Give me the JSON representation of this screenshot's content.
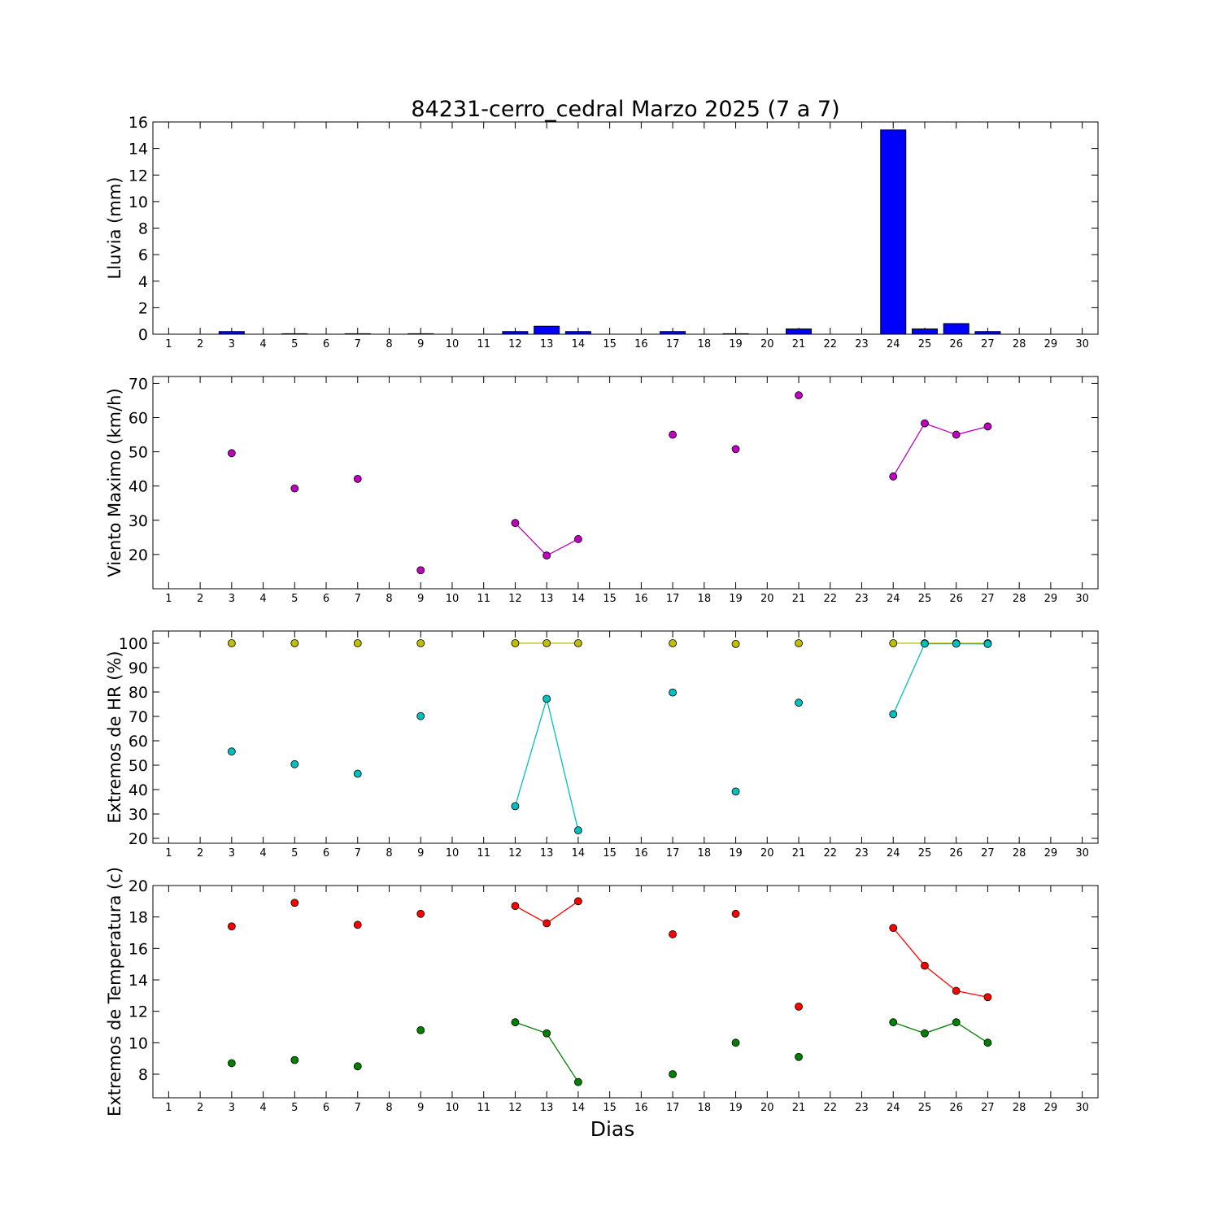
{
  "chart_data": [
    {
      "type": "bar",
      "title": "84231-cerro_cedral Marzo 2025  (7 a 7)",
      "xlabel": "",
      "ylabel": "Lluvia (mm)",
      "categories": [
        1,
        2,
        3,
        4,
        5,
        6,
        7,
        8,
        9,
        10,
        11,
        12,
        13,
        14,
        15,
        16,
        17,
        18,
        19,
        20,
        21,
        22,
        23,
        24,
        25,
        26,
        27,
        28,
        29,
        30
      ],
      "values": [
        null,
        null,
        0.2,
        null,
        0.0,
        null,
        0.0,
        null,
        0.0,
        null,
        null,
        0.2,
        0.6,
        0.2,
        null,
        null,
        0.2,
        null,
        0.0,
        null,
        0.4,
        null,
        null,
        15.4,
        0.4,
        0.8,
        0.2,
        null,
        null,
        null
      ],
      "ylim": [
        0,
        16
      ],
      "yticks": [
        0,
        2,
        4,
        6,
        8,
        10,
        12,
        14,
        16
      ],
      "color": "#0000ff"
    },
    {
      "type": "line",
      "title": "",
      "xlabel": "",
      "ylabel": "Viento Maximo (km/h)",
      "categories": [
        1,
        2,
        3,
        4,
        5,
        6,
        7,
        8,
        9,
        10,
        11,
        12,
        13,
        14,
        15,
        16,
        17,
        18,
        19,
        20,
        21,
        22,
        23,
        24,
        25,
        26,
        27,
        28,
        29,
        30
      ],
      "ylim": [
        10,
        72
      ],
      "yticks": [
        20,
        30,
        40,
        50,
        60,
        70
      ],
      "series": [
        {
          "color": "#bf00bf",
          "values": [
            null,
            null,
            49.6,
            null,
            39.3,
            null,
            42.1,
            null,
            15.4,
            null,
            null,
            29.2,
            19.7,
            24.5,
            null,
            null,
            55.0,
            null,
            50.8,
            null,
            66.5,
            null,
            null,
            42.8,
            58.3,
            55.0,
            57.4,
            null,
            null,
            null
          ]
        }
      ]
    },
    {
      "type": "line",
      "title": "",
      "xlabel": "",
      "ylabel": "Extremos de HR (%)",
      "categories": [
        1,
        2,
        3,
        4,
        5,
        6,
        7,
        8,
        9,
        10,
        11,
        12,
        13,
        14,
        15,
        16,
        17,
        18,
        19,
        20,
        21,
        22,
        23,
        24,
        25,
        26,
        27,
        28,
        29,
        30
      ],
      "ylim": [
        18,
        105
      ],
      "yticks": [
        20,
        30,
        40,
        50,
        60,
        70,
        80,
        90,
        100
      ],
      "series": [
        {
          "color": "#bfbf00",
          "values": [
            null,
            null,
            100,
            null,
            100,
            null,
            100,
            null,
            100,
            null,
            null,
            100,
            100,
            100,
            null,
            null,
            100,
            null,
            99.7,
            null,
            100,
            null,
            null,
            100,
            100,
            100,
            100,
            null,
            null,
            null
          ]
        },
        {
          "color": "#00bfbf",
          "values": [
            null,
            null,
            55.6,
            null,
            50.4,
            null,
            46.5,
            null,
            70.1,
            null,
            null,
            33.2,
            77.2,
            23.3,
            null,
            null,
            79.8,
            null,
            39.2,
            null,
            75.6,
            null,
            null,
            70.9,
            99.8,
            99.8,
            99.7,
            null,
            null,
            null
          ]
        }
      ]
    },
    {
      "type": "line",
      "title": "",
      "xlabel": "Dias",
      "ylabel": "Extremos de Temperatura (c)",
      "categories": [
        1,
        2,
        3,
        4,
        5,
        6,
        7,
        8,
        9,
        10,
        11,
        12,
        13,
        14,
        15,
        16,
        17,
        18,
        19,
        20,
        21,
        22,
        23,
        24,
        25,
        26,
        27,
        28,
        29,
        30
      ],
      "ylim": [
        6.5,
        20
      ],
      "yticks": [
        8,
        10,
        12,
        14,
        16,
        18,
        20
      ],
      "series": [
        {
          "color": "#ff0000",
          "values": [
            null,
            null,
            17.4,
            null,
            18.9,
            null,
            17.5,
            null,
            18.2,
            null,
            null,
            18.7,
            17.6,
            19.0,
            null,
            null,
            16.9,
            null,
            18.2,
            null,
            12.3,
            null,
            null,
            17.3,
            14.9,
            13.3,
            12.9,
            null,
            null,
            null
          ]
        },
        {
          "color": "#008000",
          "values": [
            null,
            null,
            8.7,
            null,
            8.9,
            null,
            8.5,
            null,
            10.8,
            null,
            null,
            11.3,
            10.6,
            7.5,
            null,
            null,
            8.0,
            null,
            10.0,
            null,
            9.1,
            null,
            null,
            11.3,
            10.6,
            11.3,
            10.0,
            null,
            null,
            null
          ]
        }
      ]
    }
  ]
}
